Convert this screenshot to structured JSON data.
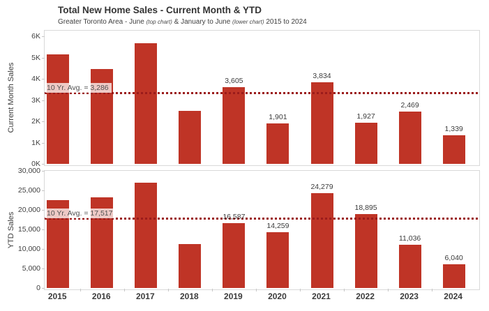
{
  "header": {
    "title": "Total New Home Sales - Current Month & YTD",
    "subtitle": {
      "part1": "Greater Toronto Area - June ",
      "note1": "(top chart)",
      "part2": " & January to June ",
      "note2": "(lower chart)",
      "part3": " 2015 to 2024"
    }
  },
  "colors": {
    "bar": "#bf3426",
    "ref_line": "#9b1b1b",
    "panel_border": "#d9d9d9",
    "text_dark": "#3b3b3b"
  },
  "chart_data": [
    {
      "type": "bar",
      "position": "top",
      "ylabel": "Current Month Sales",
      "categories": [
        "2015",
        "2016",
        "2017",
        "2018",
        "2019",
        "2020",
        "2021",
        "2022",
        "2023",
        "2024"
      ],
      "values": [
        5145,
        4474,
        5677,
        2489,
        3605,
        1901,
        3834,
        1927,
        2469,
        1339
      ],
      "bar_labels": [
        "",
        "",
        "",
        "",
        "3,605",
        "1,901",
        "3,834",
        "1,927",
        "2,469",
        "1,339"
      ],
      "ylim": [
        0,
        6000
      ],
      "yticks": [
        "0K",
        "1K",
        "2K",
        "3K",
        "4K",
        "5K",
        "6K"
      ],
      "ref_line": {
        "value": 3286,
        "label": "10 Yr. Avg. = 3,286"
      },
      "grid": false,
      "legend": false
    },
    {
      "type": "bar",
      "position": "lower",
      "ylabel": "YTD Sales",
      "categories": [
        "2015",
        "2016",
        "2017",
        "2018",
        "2019",
        "2020",
        "2021",
        "2022",
        "2023",
        "2024"
      ],
      "values": [
        22578,
        23257,
        27017,
        11222,
        16587,
        14259,
        24279,
        18895,
        11036,
        6040
      ],
      "bar_labels": [
        "",
        "",
        "",
        "",
        "16,587",
        "14,259",
        "24,279",
        "18,895",
        "11,036",
        "6,040"
      ],
      "ylim": [
        0,
        30000
      ],
      "yticks": [
        "0",
        "5,000",
        "10,000",
        "15,000",
        "20,000",
        "25,000",
        "30,000"
      ],
      "ref_line": {
        "value": 17517,
        "label": "10 Yr. Avg. = 17,517"
      },
      "grid": false,
      "legend": false
    }
  ]
}
